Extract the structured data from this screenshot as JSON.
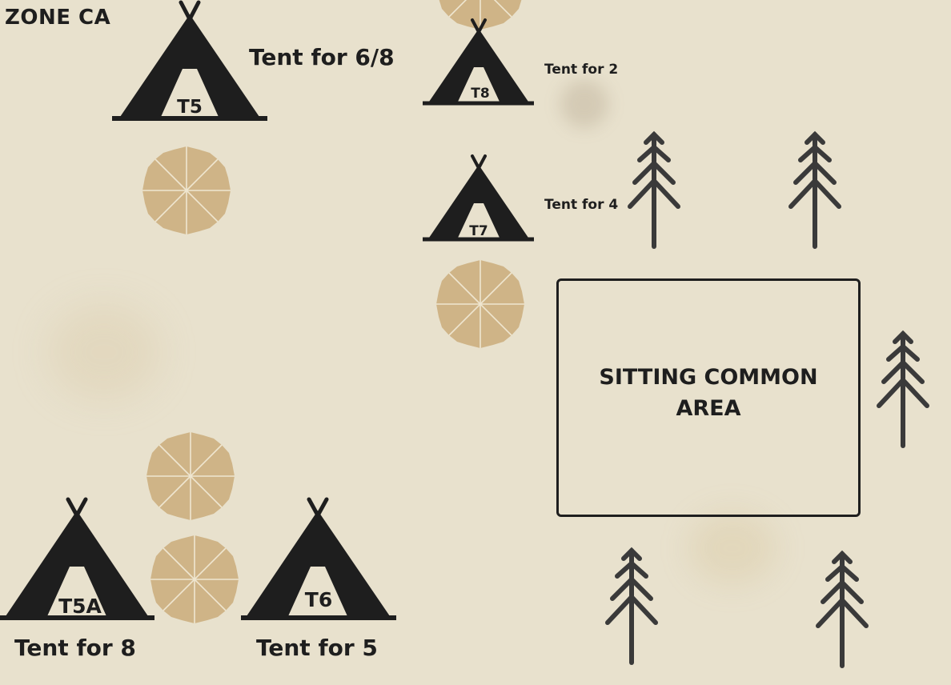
{
  "zone": {
    "title": "ZONE CA"
  },
  "tents": [
    {
      "code": "T5",
      "capacity_label": "Tent for 6/8"
    },
    {
      "code": "T8",
      "capacity_label": "Tent for 2"
    },
    {
      "code": "T7",
      "capacity_label": "Tent for 4"
    },
    {
      "code": "T5A",
      "capacity_label": "Tent for 8"
    },
    {
      "code": "T6",
      "capacity_label": "Tent for 5"
    }
  ],
  "common_area": {
    "label": "SITTING COMMON AREA"
  },
  "colors": {
    "background": "#e8e1cd",
    "tent": "#1e1e1e",
    "umbrella": "#cfb487",
    "tree": "#3a3a3a"
  },
  "icons": [
    "tent-icon",
    "umbrella-icon",
    "tree-icon"
  ]
}
